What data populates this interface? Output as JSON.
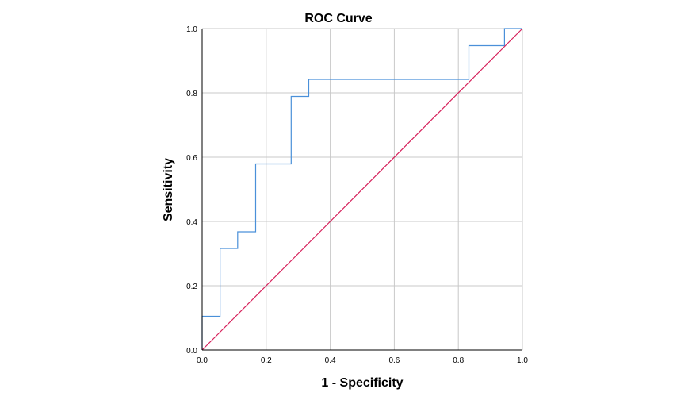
{
  "chart_data": {
    "type": "line",
    "title": "ROC Curve",
    "xlabel": "1 - Specificity",
    "ylabel": "Sensitivity",
    "xlim": [
      0,
      1
    ],
    "ylim": [
      0,
      1
    ],
    "x_ticks": [
      "0.0",
      "0.2",
      "0.4",
      "0.6",
      "0.8",
      "1.0"
    ],
    "y_ticks": [
      "0.0",
      "0.2",
      "0.4",
      "0.6",
      "0.8",
      "1.0"
    ],
    "grid": true,
    "series": [
      {
        "style": "step",
        "color": "#4a90d9",
        "points": [
          [
            0.0,
            0.0
          ],
          [
            0.0,
            0.105
          ],
          [
            0.056,
            0.105
          ],
          [
            0.056,
            0.316
          ],
          [
            0.111,
            0.316
          ],
          [
            0.111,
            0.368
          ],
          [
            0.167,
            0.368
          ],
          [
            0.167,
            0.579
          ],
          [
            0.278,
            0.579
          ],
          [
            0.278,
            0.789
          ],
          [
            0.333,
            0.789
          ],
          [
            0.333,
            0.842
          ],
          [
            0.833,
            0.842
          ],
          [
            0.833,
            0.947
          ],
          [
            0.944,
            0.947
          ],
          [
            0.944,
            1.0
          ],
          [
            1.0,
            1.0
          ]
        ]
      },
      {
        "style": "reference",
        "color": "#d6215b",
        "points": [
          [
            0.0,
            0.0
          ],
          [
            1.0,
            1.0
          ]
        ]
      }
    ]
  }
}
